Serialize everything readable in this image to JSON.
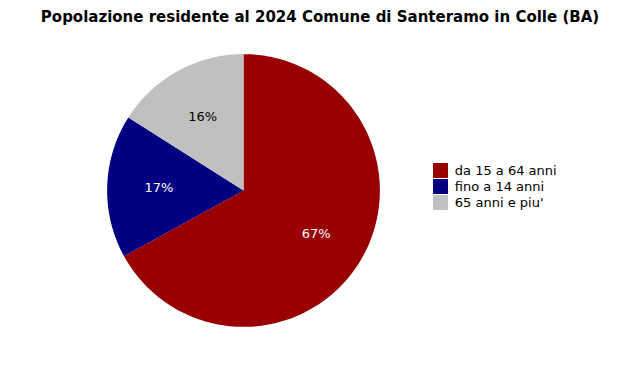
{
  "chart_data": {
    "type": "pie",
    "title": "Popolazione residente al 2024 Comune di Santeramo in Colle (BA)",
    "categories": [
      "da 15 a 64 anni",
      "fino a 14 anni",
      "65 anni e piu'"
    ],
    "values": [
      67,
      17,
      16
    ],
    "value_labels": [
      "67%",
      "17%",
      "16%"
    ],
    "colors": [
      "#990000",
      "#000080",
      "#c0c0c0"
    ],
    "data_labels": true,
    "legend": "right"
  }
}
